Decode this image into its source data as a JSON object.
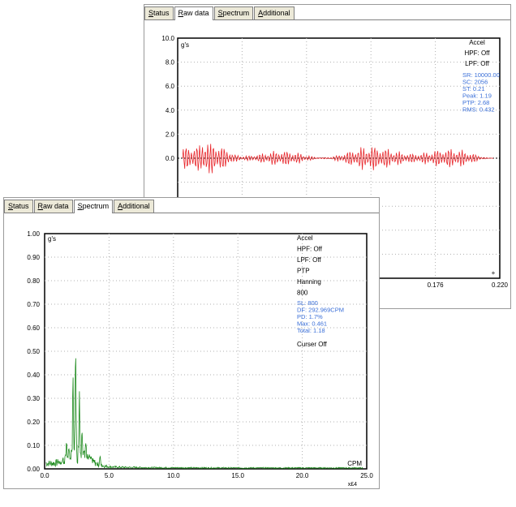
{
  "colors": {
    "raw_signal": "#e8262b",
    "spectrum": "#1c8a1c",
    "info_blue": "#3a6fd8",
    "frame": "#000000",
    "grid": "#b0b0b0"
  },
  "raw_panel": {
    "tabs": [
      {
        "label": "Status",
        "active": false
      },
      {
        "label": "Raw data",
        "active": true
      },
      {
        "label": "Spectrum",
        "active": false
      },
      {
        "label": "Additional",
        "active": false
      }
    ],
    "info_black": [
      "Accel",
      "HPF: Off",
      "LPF: Off"
    ],
    "info_blue": [
      "SR: 10000.00",
      "SC: 2056",
      "ST: 0.21",
      "Peak: 1.19",
      "PTP: 2.68",
      "RMS: 0.432"
    ],
    "end_marker": "+"
  },
  "spectrum_panel": {
    "tabs": [
      {
        "label": "Status",
        "active": false
      },
      {
        "label": "Raw data",
        "active": false
      },
      {
        "label": "Spectrum",
        "active": true
      },
      {
        "label": "Additional",
        "active": false
      }
    ],
    "info_black": [
      "Accel",
      "HPF: Off",
      "LPF: Off",
      "PTP",
      "Hanning",
      "800"
    ],
    "info_blue": [
      "SL: 800",
      "DF: 292.969CPM",
      "PD: 1.7%",
      "Max: 0.461",
      "Total: 1.18"
    ],
    "cursor_label": "Curser Off"
  },
  "chart_data": [
    {
      "type": "line",
      "title": "",
      "ylabel": "g's",
      "xlabel": "",
      "ylim": [
        -10.0,
        10.0
      ],
      "xlim": [
        0,
        0.22
      ],
      "y_ticks": [
        "10.0",
        "8.0",
        "6.0",
        "4.0",
        "2.0",
        "0.0"
      ],
      "x_ticks_visible": [
        "0.176",
        "0.220"
      ],
      "grid": true,
      "series": [
        {
          "description": "raw acceleration time waveform",
          "x_range": [
            0,
            0.21
          ],
          "amplitude_peak": 1.19
        }
      ]
    },
    {
      "type": "line",
      "title": "",
      "ylabel": "g's",
      "xlabel": "CPM",
      "x_multiplier": "x£4",
      "ylim": [
        0.0,
        1.0
      ],
      "xlim": [
        0.0,
        25.0
      ],
      "y_ticks": [
        "1.00",
        "0.90",
        "0.80",
        "0.70",
        "0.60",
        "0.50",
        "0.40",
        "0.30",
        "0.20",
        "0.10",
        "0.00"
      ],
      "x_ticks": [
        "0.0",
        "5.0",
        "10.0",
        "15.0",
        "20.0",
        "25.0"
      ],
      "grid": true,
      "series": [
        {
          "description": "acceleration spectrum",
          "peaks": [
            {
              "x": 2.4,
              "y": 0.46
            },
            {
              "x": 2.2,
              "y": 0.33
            },
            {
              "x": 2.7,
              "y": 0.27
            },
            {
              "x": 2.9,
              "y": 0.12
            },
            {
              "x": 3.2,
              "y": 0.09
            },
            {
              "x": 1.7,
              "y": 0.07
            },
            {
              "x": 4.3,
              "y": 0.04
            }
          ]
        }
      ]
    }
  ]
}
